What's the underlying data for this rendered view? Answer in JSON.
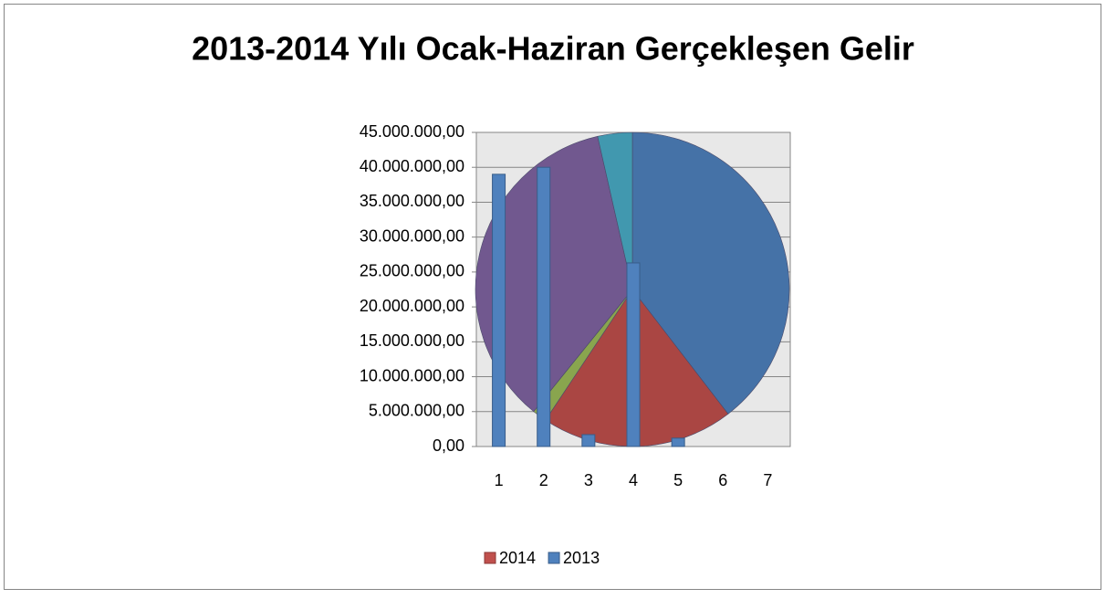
{
  "chart_data": {
    "type": "bar",
    "title": "2013-2014 Yılı Ocak-Haziran Gerçekleşen Gelir",
    "categories": [
      "1",
      "2",
      "3",
      "4",
      "5",
      "6",
      "7"
    ],
    "ylim": [
      0,
      45000000
    ],
    "yticks": [
      {
        "value": 0,
        "label": "0,00"
      },
      {
        "value": 5000000,
        "label": "5.000.000,00"
      },
      {
        "value": 10000000,
        "label": "10.000.000,00"
      },
      {
        "value": 15000000,
        "label": "15.000.000,00"
      },
      {
        "value": 20000000,
        "label": "20.000.000,00"
      },
      {
        "value": 25000000,
        "label": "25.000.000,00"
      },
      {
        "value": 30000000,
        "label": "30.000.000,00"
      },
      {
        "value": 35000000,
        "label": "35.000.000,00"
      },
      {
        "value": 40000000,
        "label": "40.000.000,00"
      },
      {
        "value": 45000000,
        "label": "45.000.000,00"
      }
    ],
    "grid": true,
    "legend": "bottom",
    "series": [
      {
        "name": "2014",
        "type": "pie",
        "color": "#c0504d",
        "values": [
          40000000,
          20000000,
          1500000,
          36000000,
          3600000,
          0,
          0
        ],
        "slice_colors": [
          "#4572a7",
          "#aa4643",
          "#89a54e",
          "#71588f",
          "#4198af",
          "#db843d",
          "#93a9cf"
        ]
      },
      {
        "name": "2013",
        "type": "bar",
        "color": "#4f81bd",
        "values": [
          39000000,
          40000000,
          1700000,
          26300000,
          1200000,
          0,
          0
        ]
      }
    ]
  }
}
